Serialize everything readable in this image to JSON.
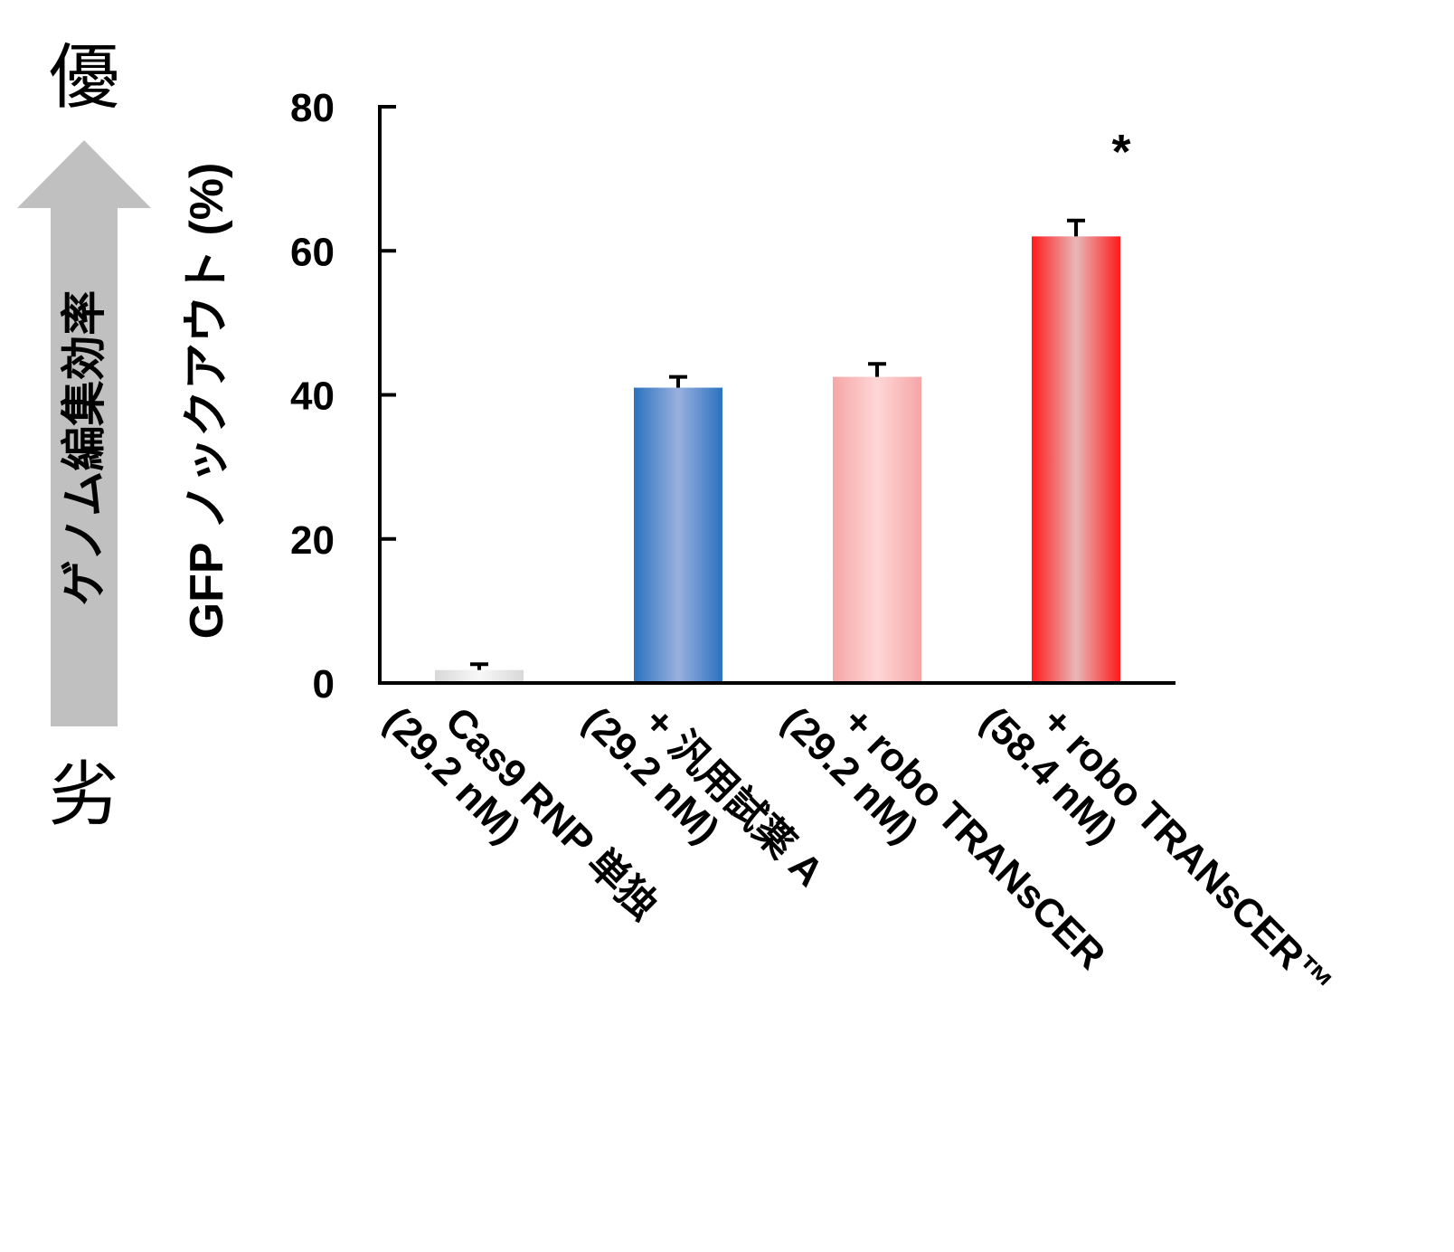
{
  "side_scale": {
    "top_label": "優",
    "bottom_label": "劣",
    "arrow_label": "ゲノム編集効率",
    "arrow_color": "#c0c0c0"
  },
  "chart_data": {
    "type": "bar",
    "ylabel": "GFP ノックアウト (%)",
    "ylim": [
      0,
      80
    ],
    "yticks": [
      0,
      20,
      40,
      60,
      80
    ],
    "categories": [
      {
        "line1": "Cas9 RNP 単独",
        "line2": "(29.2 nM)"
      },
      {
        "line1": "+ 汎用試薬 A",
        "line2": "(29.2 nM)"
      },
      {
        "line1": "+ robo TRANsCER",
        "line2": "(29.2 nM)"
      },
      {
        "line1": "+ robo TRANsCER™",
        "line2": "(58.4 nM)"
      }
    ],
    "values": [
      1.8,
      41,
      42.5,
      62
    ],
    "errors": [
      0.8,
      1.5,
      1.8,
      2.2
    ],
    "colors": [
      {
        "edge": "#d8d8d8",
        "center": "#f8f8f8"
      },
      {
        "edge": "#2a72bf",
        "center": "#9ab0de"
      },
      {
        "edge": "#f5a6a6",
        "center": "#ffd6d6"
      },
      {
        "edge": "#ff1a1a",
        "center": "#e8b8b8"
      }
    ],
    "annotations": [
      {
        "bar_index": 3,
        "text": "*"
      }
    ]
  }
}
